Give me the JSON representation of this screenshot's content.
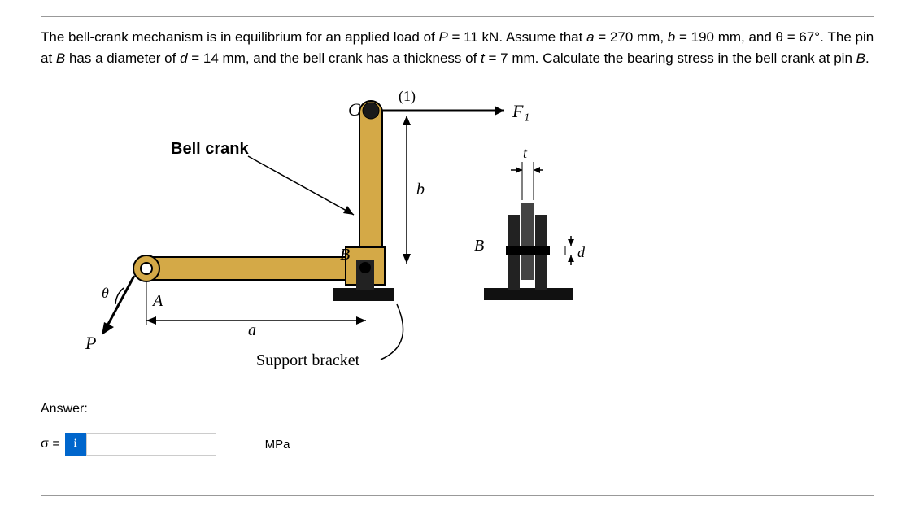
{
  "problem": {
    "text_html": "The bell-crank mechanism is in equilibrium for an applied load of <i>P</i> = 11 kN.  Assume that <i>a</i> = 270 mm, <i>b</i> = 190 mm, and θ = 67°. The pin at <i>B</i> has a diameter of <i>d</i> = 14 mm, and the bell crank has a thickness of <i>t</i> = 7 mm.  Calculate the bearing stress in the bell crank at pin <i>B</i>."
  },
  "diagram": {
    "labels": {
      "C": "C",
      "F1": "F₁",
      "one": "(1)",
      "b_dim": "b",
      "B": "B",
      "B_detail": "B",
      "t": "t",
      "d": "d",
      "A": "A",
      "a_dim": "a",
      "theta": "θ",
      "P": "P",
      "bell_crank": "Bell crank",
      "support_bracket": "Support bracket"
    },
    "colors": {
      "crank_fill": "#d4a947",
      "crank_stroke": "#000000",
      "bracket_fill": "#222222",
      "pin_fill": "#1a1a1a",
      "base_fill": "#111111",
      "text": "#000000",
      "background": "#ffffff"
    }
  },
  "answer": {
    "label": "Answer:",
    "sigma": "σ =",
    "info": "i",
    "value": "",
    "unit": "MPa"
  }
}
